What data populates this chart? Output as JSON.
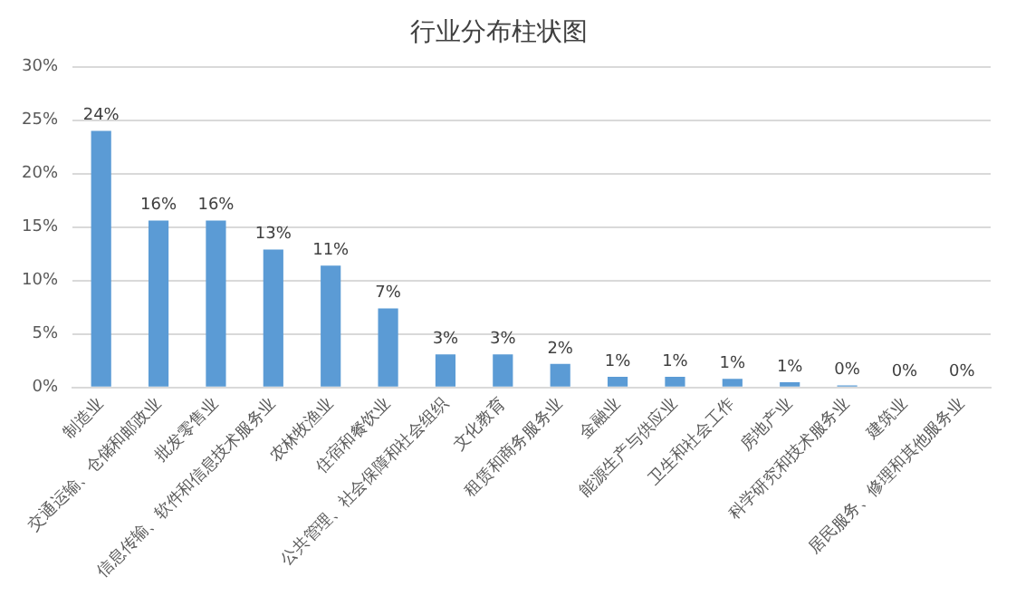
{
  "chart_data": {
    "type": "bar",
    "title": "行业分布柱状图",
    "categories": [
      "制造业",
      "交通运输、仓储和邮政业",
      "批发零售业",
      "信息传输、软件和信息技术服务业",
      "农林牧渔业",
      "住宿和餐饮业",
      "公共管理、社会保障和社会组织",
      "文化教育",
      "租赁和商务服务业",
      "金融业",
      "能源生产与供应业",
      "卫生和社会工作",
      "房地产业",
      "科学研究和技术服务业",
      "建筑业",
      "居民服务、修理和其他服务业"
    ],
    "values": [
      24,
      15.6,
      15.6,
      12.9,
      11.4,
      7.4,
      3.1,
      3.1,
      2.2,
      1.0,
      1.0,
      0.8,
      0.5,
      0.2,
      0,
      0
    ],
    "value_labels": [
      "24%",
      "16%",
      "16%",
      "13%",
      "11%",
      "7%",
      "3%",
      "3%",
      "2%",
      "1%",
      "1%",
      "1%",
      "1%",
      "0%",
      "0%",
      "0%"
    ],
    "color": "#5b9bd5",
    "ylim": [
      0,
      30
    ],
    "yticks": [
      {
        "value": 0,
        "label": "0%"
      },
      {
        "value": 5,
        "label": "5%"
      },
      {
        "value": 10,
        "label": "10%"
      },
      {
        "value": 15,
        "label": "15%"
      },
      {
        "value": 20,
        "label": "20%"
      },
      {
        "value": 25,
        "label": "25%"
      },
      {
        "value": 30,
        "label": "30%"
      }
    ],
    "grid": "y",
    "legend": false
  }
}
